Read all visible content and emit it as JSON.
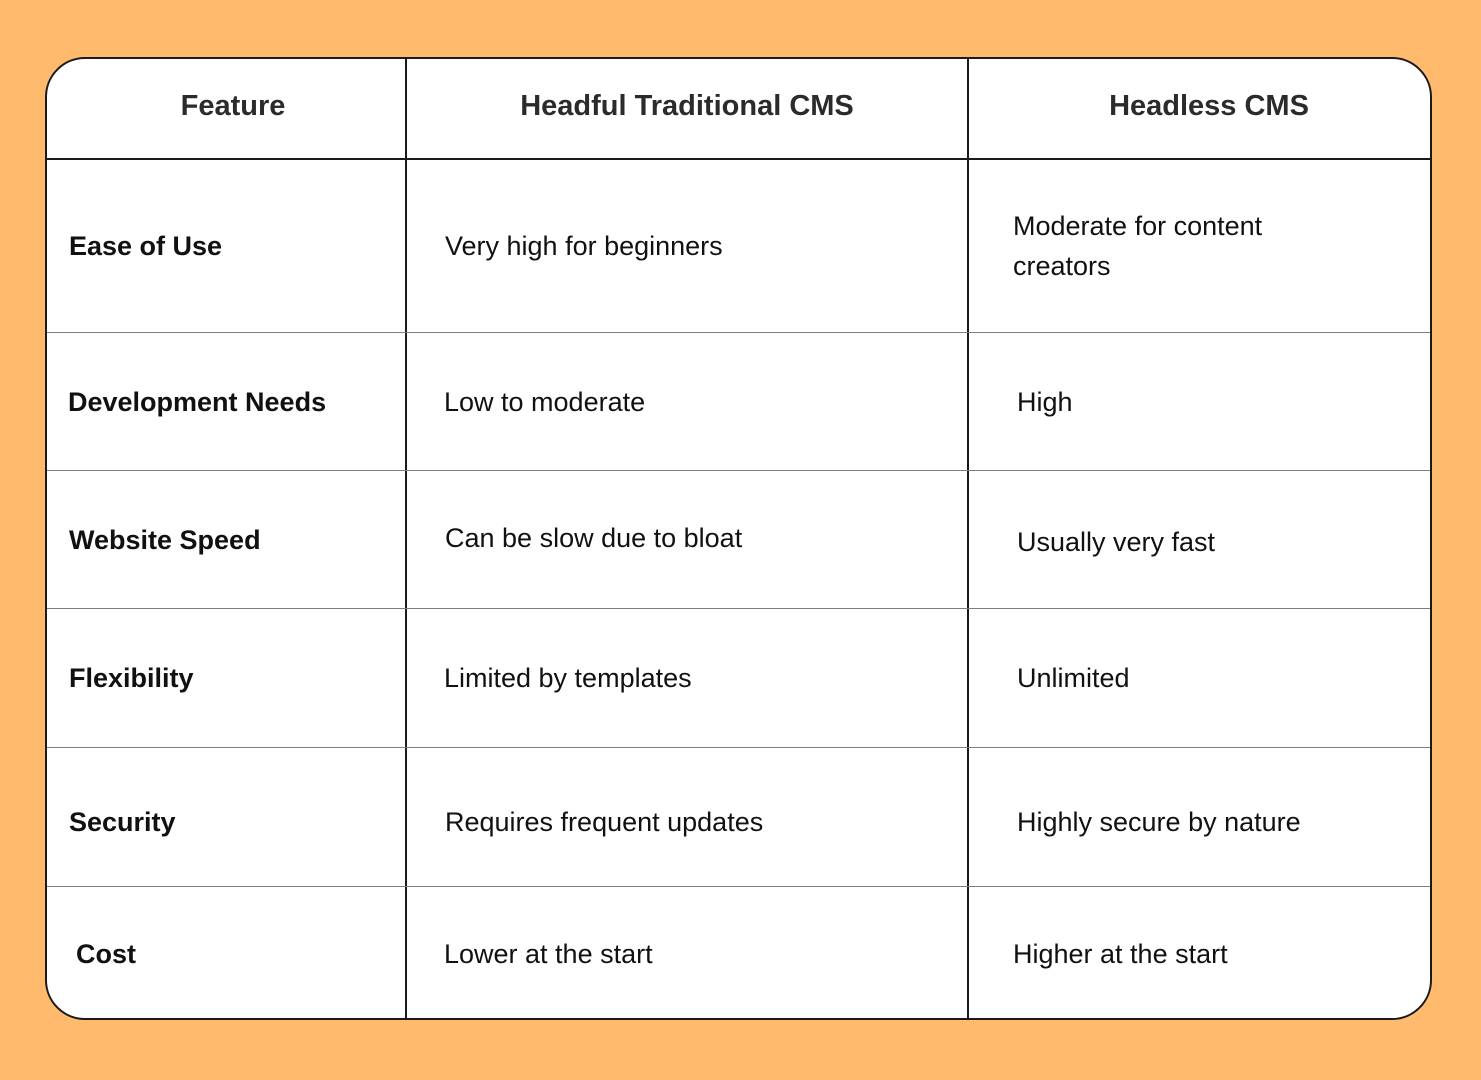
{
  "table": {
    "headers": {
      "feature": "Feature",
      "headful": "Headful Traditional CMS",
      "headless": "Headless CMS"
    },
    "rows": [
      {
        "feature": "Ease of Use",
        "headful": "Very high for beginners",
        "headless": "Moderate for content creators"
      },
      {
        "feature": "Development Needs",
        "headful": "Low to moderate",
        "headless": "High"
      },
      {
        "feature": "Website Speed",
        "headful": "Can be slow due to bloat",
        "headless": "Usually very fast"
      },
      {
        "feature": "Flexibility",
        "headful": "Limited by templates",
        "headless": "Unlimited"
      },
      {
        "feature": "Security",
        "headful": "Requires frequent updates",
        "headless": "Highly secure by nature"
      },
      {
        "feature": "Cost",
        "headful": "Lower at the start",
        "headless": "Higher at the start"
      }
    ]
  },
  "colors": {
    "background": "#FFBA6E",
    "card": "#FFFFFF",
    "border": "#1A1A1A",
    "row_divider": "#7D7D7D"
  }
}
